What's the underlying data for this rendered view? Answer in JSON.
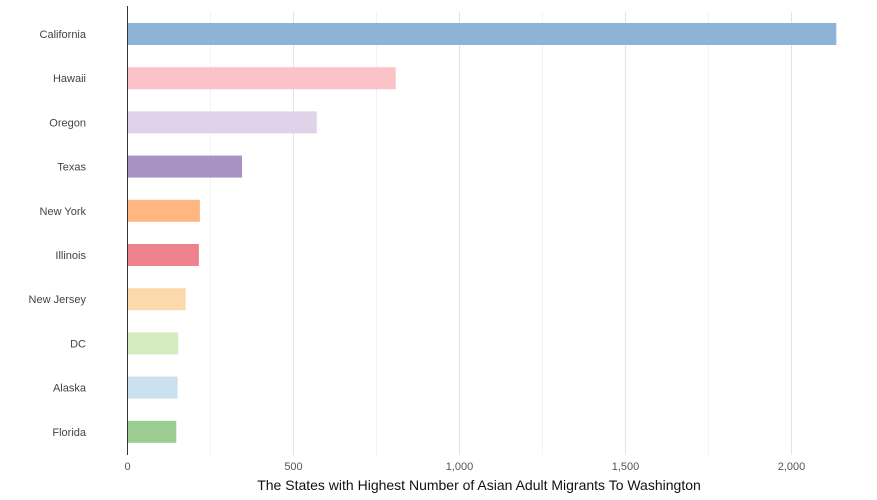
{
  "chart_data": {
    "type": "bar",
    "orientation": "horizontal",
    "title": "",
    "xlabel": "The States with Highest Number of Asian Adult Migrants To Washington",
    "ylabel": "",
    "xlim": [
      0,
      2150
    ],
    "x_ticks": [
      0,
      500,
      1000,
      1500,
      2000
    ],
    "x_tick_labels": [
      "0",
      "500",
      "1,000",
      "1,500",
      "2,000"
    ],
    "grid": "vertical",
    "legend": "none",
    "categories": [
      "California",
      "Hawaii",
      "Oregon",
      "Texas",
      "New York",
      "Illinois",
      "New Jersey",
      "DC",
      "Alaska",
      "Florida"
    ],
    "values": [
      2135,
      808,
      570,
      345,
      218,
      215,
      175,
      153,
      151,
      147
    ],
    "colors": [
      "#8db3d7",
      "#fbc3c8",
      "#e0d2e8",
      "#a892c4",
      "#ffb681",
      "#ee828d",
      "#fdd8ac",
      "#d4ecc0",
      "#cce1ef",
      "#9bcc91"
    ]
  }
}
